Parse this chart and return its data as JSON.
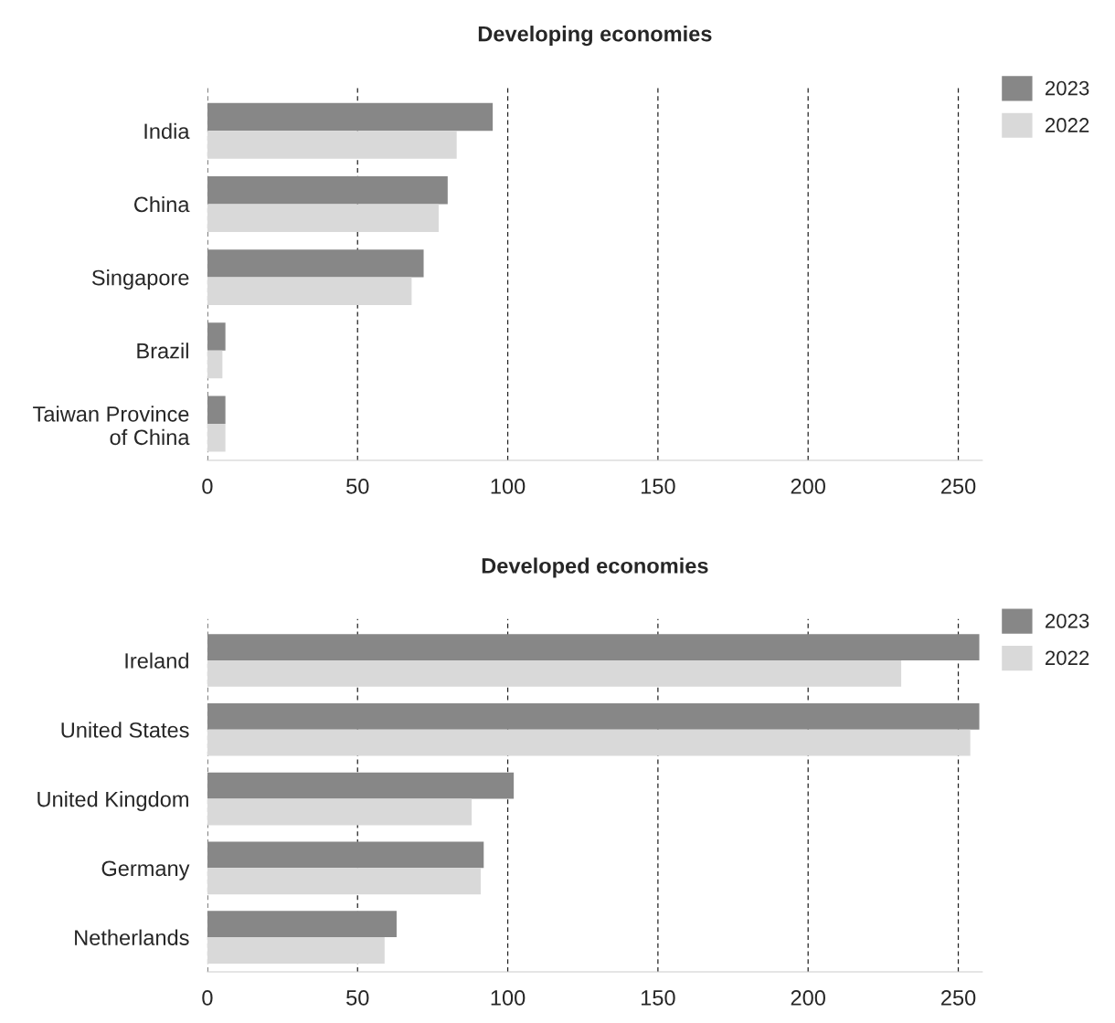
{
  "chart_data": [
    {
      "type": "bar",
      "orientation": "horizontal",
      "title": "Developing economies",
      "categories": [
        "India",
        "China",
        "Singapore",
        "Brazil",
        "Taiwan Province\nof China"
      ],
      "series": [
        {
          "name": "2023",
          "color": "#878787",
          "values": [
            95,
            80,
            72,
            6,
            6
          ]
        },
        {
          "name": "2022",
          "color": "#d9d9d9",
          "values": [
            83,
            77,
            68,
            5,
            6
          ]
        }
      ],
      "xlim": [
        0,
        258
      ],
      "xticks": [
        0,
        50,
        100,
        150,
        200,
        250
      ],
      "grid": "x",
      "legend": "top right"
    },
    {
      "type": "bar",
      "orientation": "horizontal",
      "title": "Developed economies",
      "categories": [
        "Ireland",
        "United States",
        "United Kingdom",
        "Germany",
        "Netherlands"
      ],
      "series": [
        {
          "name": "2023",
          "color": "#878787",
          "values": [
            257,
            257,
            102,
            92,
            63
          ]
        },
        {
          "name": "2022",
          "color": "#d9d9d9",
          "values": [
            231,
            254,
            88,
            91,
            59
          ]
        }
      ],
      "xlim": [
        0,
        258
      ],
      "xticks": [
        0,
        50,
        100,
        150,
        200,
        250
      ],
      "grid": "x",
      "legend": "top right"
    }
  ]
}
